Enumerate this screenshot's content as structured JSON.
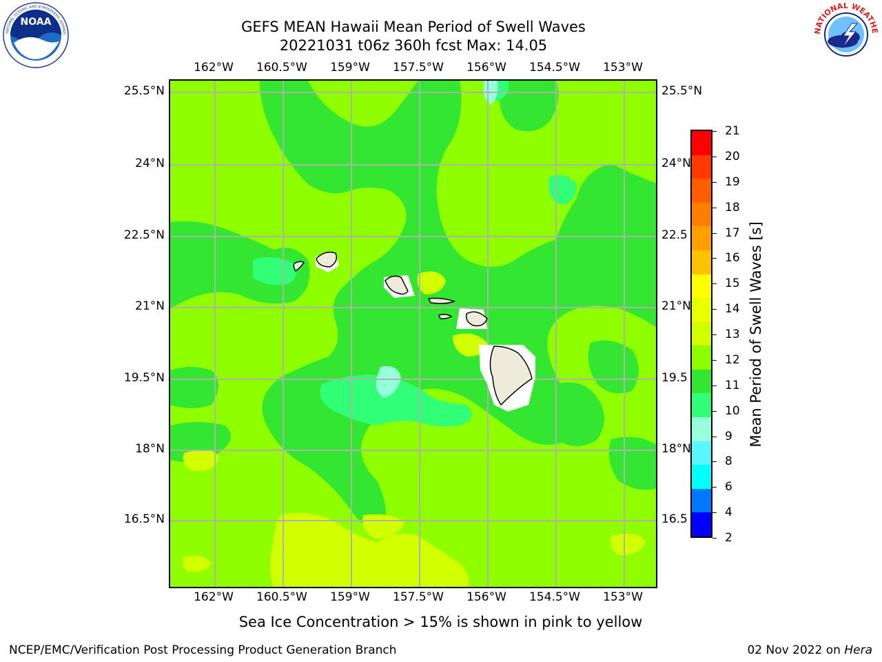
{
  "title": {
    "line1": "GEFS MEAN Hawaii Mean Period of Swell Waves",
    "line2": "20221031 t06z 360h fcst   Max: 14.05"
  },
  "logos": {
    "left": {
      "icon": "noaa-logo-icon",
      "text": "NOAA",
      "ring_text": "NATIONAL OCEANIC AND ATMOSPHERIC ADMINISTRATION · U.S. DEPARTMENT OF COMMERCE"
    },
    "right": {
      "icon": "nws-logo-icon",
      "ring_text": "NATIONAL WEATHER SERVICE"
    }
  },
  "map": {
    "lon_ticks": [
      "162°W",
      "160.5°W",
      "159°W",
      "157.5°W",
      "156°W",
      "154.5°W",
      "153°W"
    ],
    "lat_ticks_left": [
      "25.5°N",
      "24°N",
      "22.5°N",
      "21°N",
      "19.5°N",
      "18°N",
      "16.5°N"
    ],
    "lat_ticks_right": [
      "25.5°N",
      "24°N",
      "22.5",
      "21°N",
      "19.5",
      "18°N",
      "16.5"
    ],
    "grid_lines": true,
    "land_color": "#eeebdc",
    "dominant_field_value_range": [
      11,
      14
    ]
  },
  "colorbar": {
    "title": "Mean Period of Swell Waves [s]",
    "labels": [
      "21",
      "20",
      "19",
      "18",
      "17",
      "16",
      "15",
      "14",
      "13",
      "12",
      "11",
      "10",
      "9",
      "8",
      "6",
      "4",
      "2"
    ],
    "colors": [
      "#ff0000",
      "#ff3a00",
      "#ff5e00",
      "#ff7d00",
      "#ff9f00",
      "#ffc200",
      "#ffff00",
      "#eaff00",
      "#d2ff00",
      "#8fff00",
      "#32e632",
      "#32ff78",
      "#96ffdc",
      "#5af5ff",
      "#00ffff",
      "#0078ff",
      "#0000ff"
    ]
  },
  "note": "Sea Ice Concentration > 15% is shown in pink to yellow",
  "footer": {
    "left": "NCEP/EMC/Verification Post Processing Product Generation Branch",
    "right_prefix": "02 Nov 2022 on ",
    "right_host": "Hera"
  }
}
